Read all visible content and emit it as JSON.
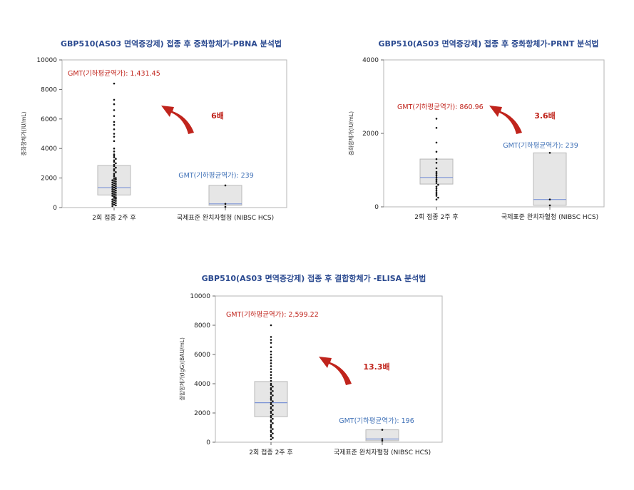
{
  "colors": {
    "title": "#2b4a90",
    "gmt_vaccine": "#c0241c",
    "gmt_reference": "#3d6fb6",
    "box_fill": "#e6e6e6",
    "box_stroke": "#b8b8b8",
    "median_line": "#7b93d6",
    "point": "#111111",
    "arrow": "#c0241c"
  },
  "chart_data": [
    {
      "type": "box",
      "title": "GBP510(AS03 면역증강제) 접종 후 중화항체가-PBNA 분석법",
      "ylabel": "중화항체가(IU/mL)",
      "ylim": [
        0,
        10000
      ],
      "yticks": [
        0,
        2000,
        4000,
        6000,
        8000,
        10000
      ],
      "ytick_labels": [
        "0",
        "2000",
        "4000",
        "6000",
        "8000",
        "10000"
      ],
      "categories": [
        "2회 접종 2주 후",
        "국제표준 완치자혈청 (NIBSC HCS)"
      ],
      "boxes": [
        {
          "q1": 850,
          "median": 1350,
          "q3": 2850,
          "points": [
            8400,
            7300,
            7000,
            6600,
            6200,
            5800,
            5600,
            5300,
            5000,
            4800,
            4500,
            4000,
            3800,
            3600,
            3500,
            3400,
            3300,
            3200,
            3100,
            3000,
            2900,
            2800,
            2700,
            2600,
            2500,
            2400,
            2300,
            2200,
            2100,
            2000,
            1950,
            1900,
            1850,
            1800,
            1750,
            1700,
            1650,
            1600,
            1550,
            1500,
            1450,
            1400,
            1350,
            1300,
            1250,
            1200,
            1150,
            1100,
            1050,
            1000,
            950,
            900,
            850,
            800,
            750,
            700,
            650,
            600,
            550,
            500,
            450,
            400,
            350,
            300,
            250,
            200,
            150,
            100
          ]
        },
        {
          "q1": 150,
          "median": 250,
          "q3": 1500,
          "points": [
            1500,
            250,
            50
          ]
        }
      ],
      "gmt_labels": [
        "GMT(기하평균역가): 1,431.45",
        "GMT(기하평균역가): 239"
      ],
      "fold_label": "6배"
    },
    {
      "type": "box",
      "title": "GBP510(AS03 면역증강제) 접종 후 중화항체가-PRNT 분석법",
      "ylabel": "중화항체가(IU/mL)",
      "ylim": [
        0,
        4000
      ],
      "yticks": [
        0,
        2000,
        4000
      ],
      "ytick_labels": [
        "0",
        "2000",
        "4000"
      ],
      "categories": [
        "2회 접종 2주 후",
        "국제표준 완치자혈청 (NIBSC HCS)"
      ],
      "boxes": [
        {
          "q1": 620,
          "median": 800,
          "q3": 1300,
          "points": [
            2400,
            2150,
            1750,
            1500,
            1300,
            1200,
            1050,
            950,
            900,
            850,
            800,
            750,
            700,
            650,
            600,
            550,
            500,
            450,
            400,
            350,
            300,
            250,
            200
          ]
        },
        {
          "q1": 40,
          "median": 200,
          "q3": 1470,
          "points": [
            1470,
            200,
            40
          ]
        }
      ],
      "gmt_labels": [
        "GMT(기하평균역가): 860.96",
        "GMT(기하평균역가): 239"
      ],
      "fold_label": "3.6배"
    },
    {
      "type": "box",
      "title": "GBP510(AS03 면역증강제) 접종 후 결합항체가 -ELISA 분석법",
      "ylabel": "결합항체가(IgG)(BAU/mL)",
      "ylim": [
        0,
        10000
      ],
      "yticks": [
        0,
        2000,
        4000,
        6000,
        8000,
        10000
      ],
      "ytick_labels": [
        "0",
        "2000",
        "4000",
        "6000",
        "8000",
        "10000"
      ],
      "categories": [
        "2회 접종 2주 후",
        "국제표준 완치자혈청 (NIBSC HCS)"
      ],
      "boxes": [
        {
          "q1": 1750,
          "median": 2700,
          "q3": 4150,
          "points": [
            8000,
            7200,
            7000,
            6800,
            6500,
            6200,
            6000,
            5800,
            5600,
            5400,
            5200,
            5000,
            4800,
            4600,
            4400,
            4200,
            4000,
            3900,
            3800,
            3700,
            3600,
            3500,
            3400,
            3300,
            3200,
            3100,
            3000,
            2900,
            2800,
            2700,
            2600,
            2500,
            2400,
            2300,
            2200,
            2100,
            2000,
            1900,
            1800,
            1700,
            1600,
            1500,
            1400,
            1300,
            1200,
            1100,
            1000,
            900,
            800,
            700,
            600,
            500,
            400,
            300,
            200
          ]
        },
        {
          "q1": 100,
          "median": 220,
          "q3": 850,
          "points": [
            850,
            220,
            100
          ]
        }
      ],
      "gmt_labels": [
        "GMT(기하평균역가): 2,599.22",
        "GMT(기하평균역가): 196"
      ],
      "fold_label": "13.3배"
    }
  ]
}
